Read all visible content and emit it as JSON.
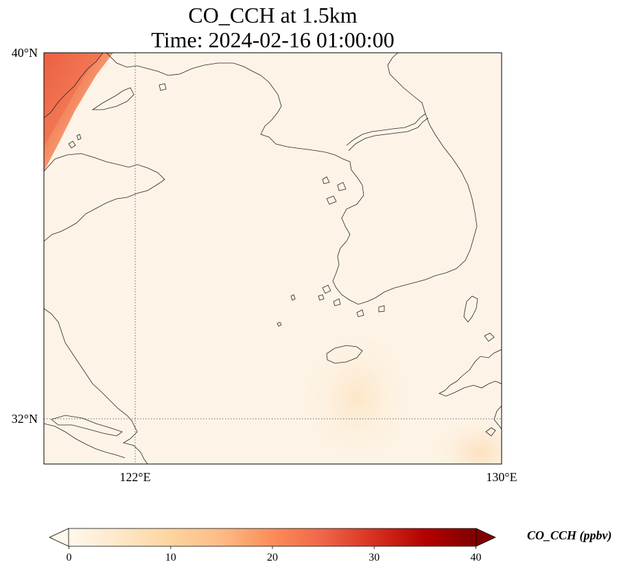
{
  "title": {
    "line1": "CO_CCH at 1.5km",
    "line2": "Time: 2024-02-16 01:00:00"
  },
  "axes": {
    "lat_labels": [
      {
        "text": "40°N",
        "value": 40
      },
      {
        "text": "32°N",
        "value": 32
      }
    ],
    "lon_labels": [
      {
        "text": "122°E",
        "value": 122
      },
      {
        "text": "130°E",
        "value": 130
      }
    ],
    "extent": {
      "lon_min": 120,
      "lon_max": 130,
      "lat_min": 31,
      "lat_max": 40
    },
    "gridlines": "dotted"
  },
  "colorbar": {
    "label": "CO_CCH (ppbv)",
    "ticks": [
      "0",
      "10",
      "20",
      "30",
      "40"
    ],
    "min": 0,
    "max": 40,
    "colormap": "OrRd",
    "colors": [
      "#fff7ec",
      "#fee8c8",
      "#fdd49e",
      "#fdbb84",
      "#fc8d59",
      "#ef6548",
      "#d7301f",
      "#b30000",
      "#7f0000"
    ],
    "extend": "both"
  },
  "map_features": [
    "China coastline",
    "Shandong peninsula",
    "Liaodong peninsula",
    "Korean peninsula",
    "Jeju island",
    "Kyushu coast",
    "Yangtze estuary"
  ],
  "chart_data": {
    "type": "heatmap",
    "variable": "CO_CCH",
    "units": "ppbv",
    "level": "1.5km",
    "time": "2024-02-16 01:00:00",
    "hotspots": [
      {
        "region": "northwest corner (Bohai / Liaodong)",
        "lon": 120.5,
        "lat": 39.6,
        "value": 24
      },
      {
        "region": "northwest corner edge",
        "lon": 120.9,
        "lat": 39.2,
        "value": 18
      },
      {
        "region": "south of Korea (Jeju area)",
        "lon": 126.8,
        "lat": 32.5,
        "value": 3
      },
      {
        "region": "southeast corner",
        "lon": 129.8,
        "lat": 31.2,
        "value": 5
      }
    ],
    "background_value": 1
  }
}
